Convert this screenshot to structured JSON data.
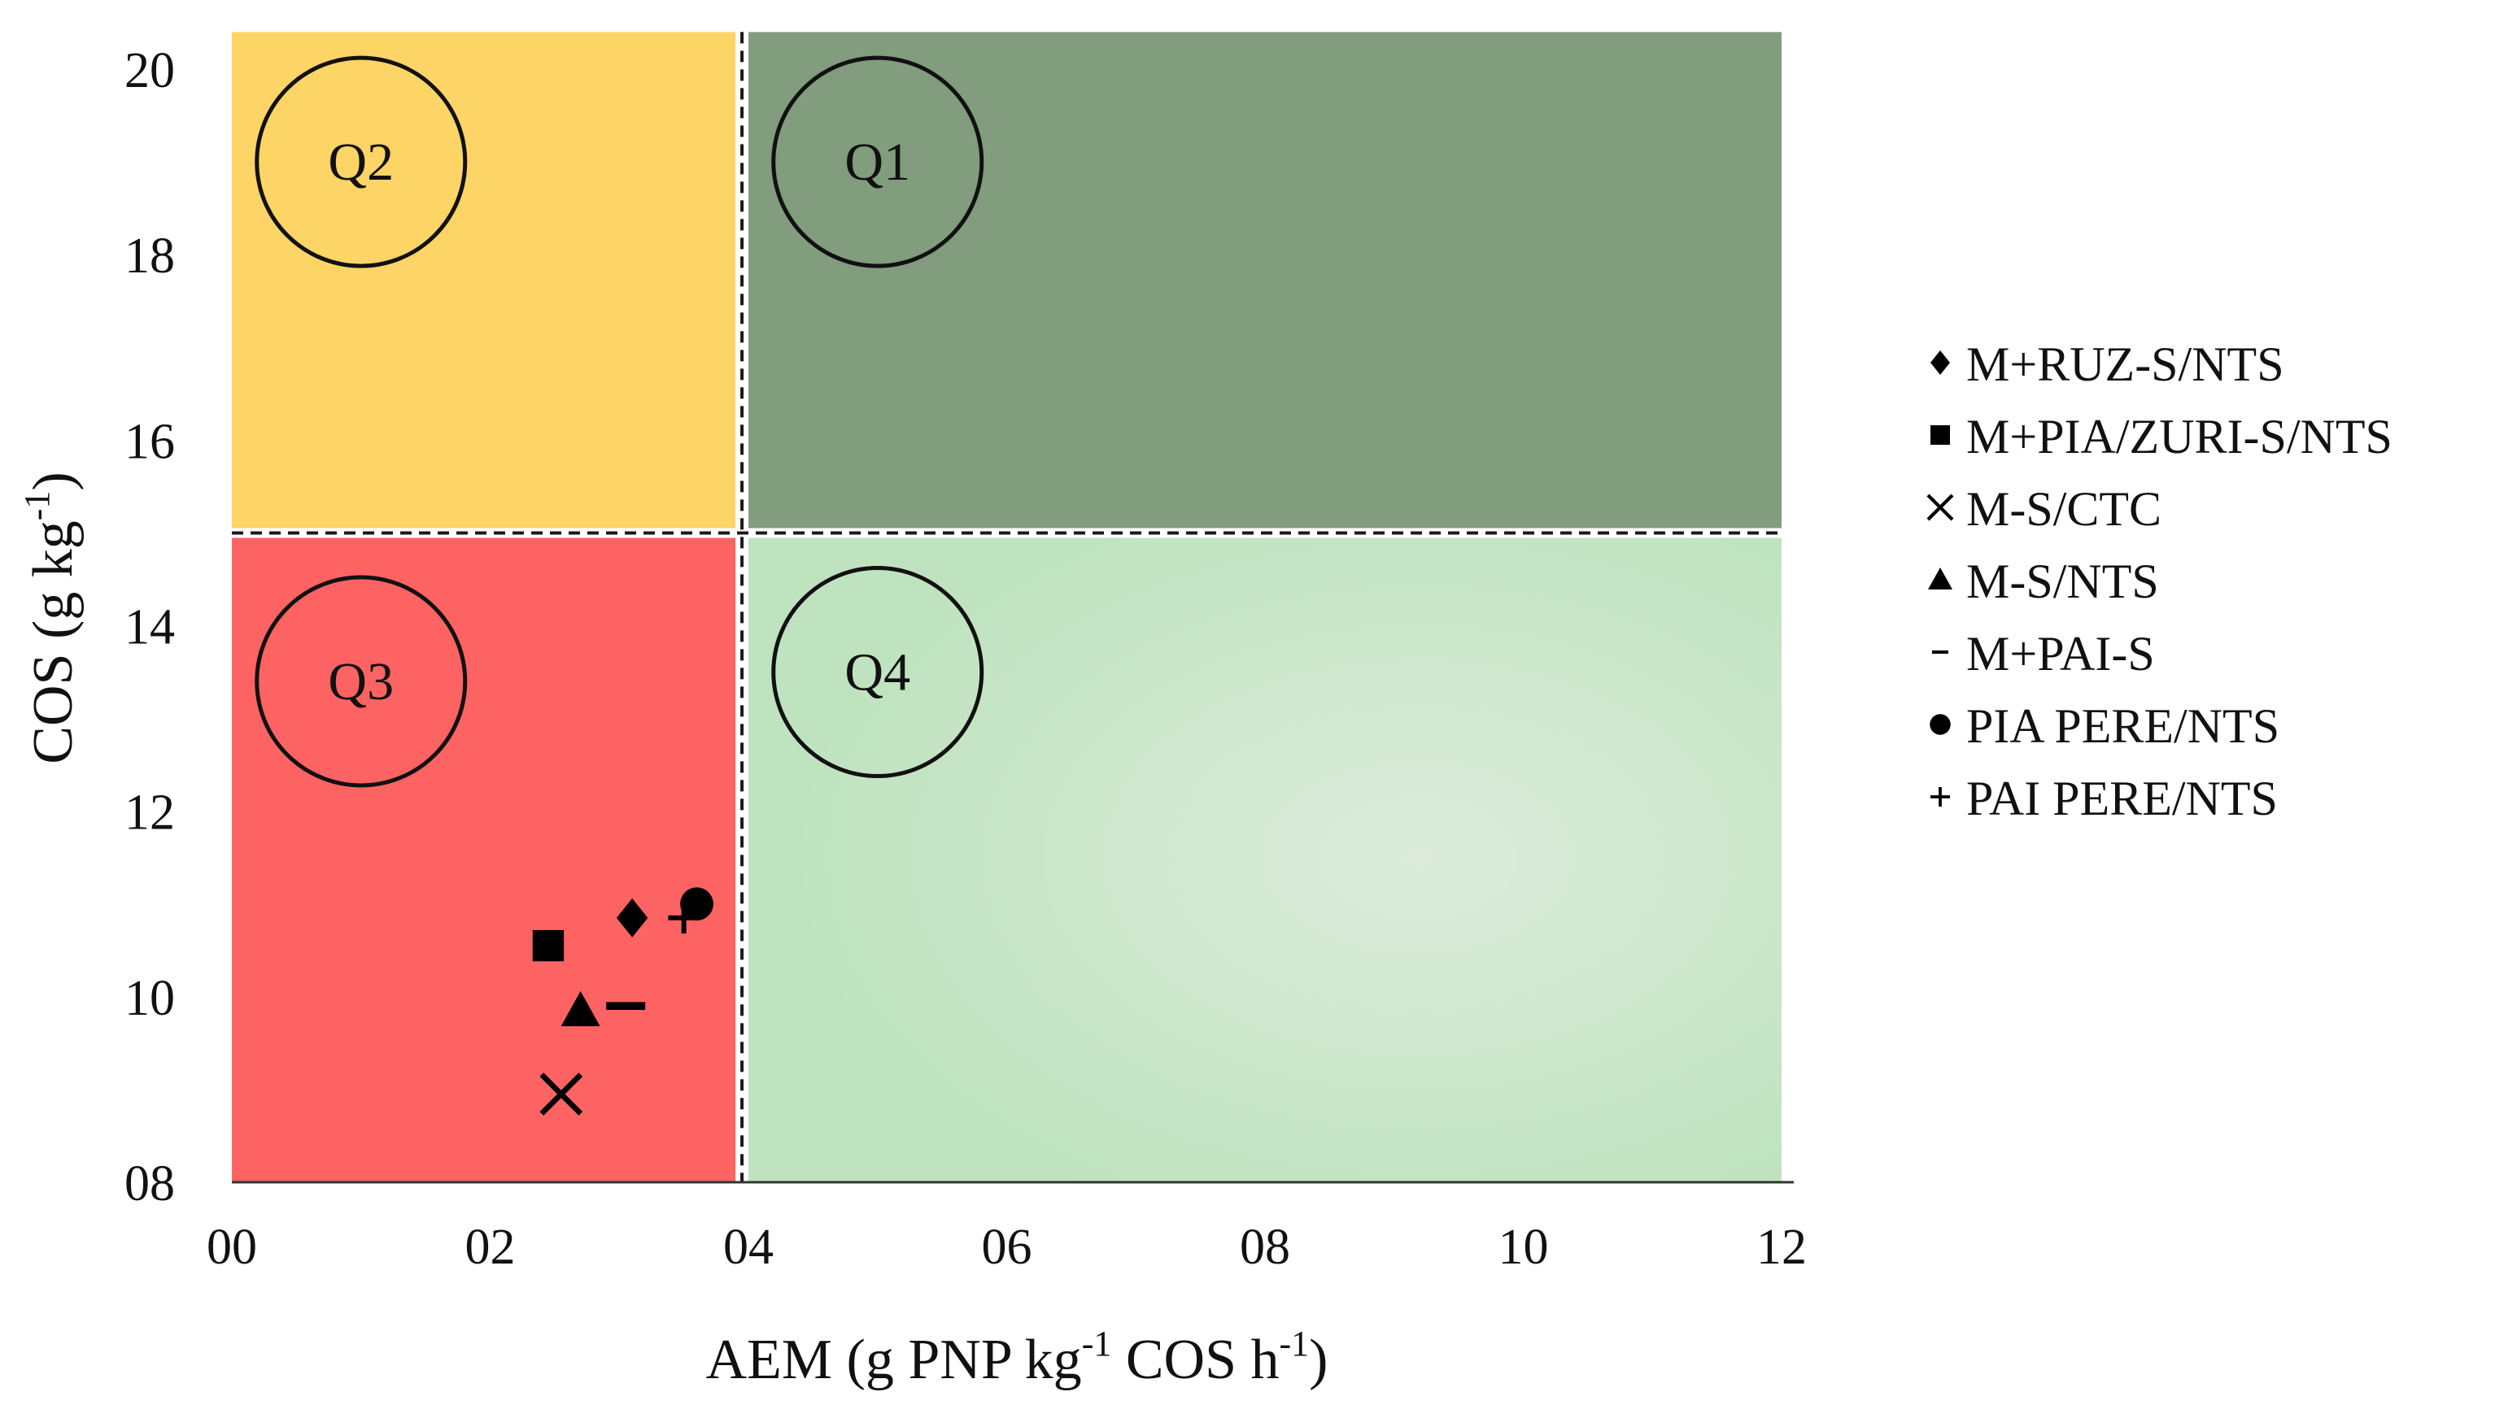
{
  "chart_data": {
    "type": "scatter",
    "title": "",
    "xlabel": {
      "main": "AEM (g PNP kg",
      "sup1": "-1",
      "mid": " COS h",
      "sup2": "-1",
      "end": ")"
    },
    "ylabel": {
      "main": "COS (g kg",
      "sup": "-1",
      "end": ")"
    },
    "xlim": [
      0,
      12
    ],
    "ylim": [
      8,
      20.5
    ],
    "x_ticks": [
      {
        "value": 0,
        "label": "00"
      },
      {
        "value": 2,
        "label": "02"
      },
      {
        "value": 4,
        "label": "04"
      },
      {
        "value": 6,
        "label": "06"
      },
      {
        "value": 8,
        "label": "08"
      },
      {
        "value": 10,
        "label": "10"
      },
      {
        "value": 12,
        "label": "12"
      }
    ],
    "y_ticks": [
      {
        "value": 8,
        "label": "08"
      },
      {
        "value": 10,
        "label": "10"
      },
      {
        "value": 12,
        "label": "12"
      },
      {
        "value": 14,
        "label": "14"
      },
      {
        "value": 16,
        "label": "16"
      },
      {
        "value": 18,
        "label": "18"
      },
      {
        "value": 20,
        "label": "20"
      }
    ],
    "thresholds": {
      "x": 3.95,
      "y": 15
    },
    "quadrants": [
      {
        "id": "q1",
        "label": "Q1",
        "color": "#829C7E",
        "x_range": [
          3.95,
          12
        ],
        "y_range": [
          15,
          20.4
        ],
        "label_at": [
          5,
          19
        ]
      },
      {
        "id": "q2",
        "label": "Q2",
        "color": "#FDD466",
        "x_range": [
          0,
          3.95
        ],
        "y_range": [
          15,
          20.4
        ],
        "label_at": [
          1,
          19
        ]
      },
      {
        "id": "q3",
        "label": "Q3",
        "color": "#FE6363",
        "x_range": [
          0,
          3.95
        ],
        "y_range": [
          8,
          15
        ],
        "label_at": [
          1,
          13.4
        ]
      },
      {
        "id": "q4",
        "label": "Q4",
        "color": "#C2E4C2",
        "x_range": [
          3.95,
          12
        ],
        "y_range": [
          8,
          15
        ],
        "label_at": [
          5,
          13.5
        ]
      }
    ],
    "series": [
      {
        "name": "M+RUZ-S/NTS",
        "marker": "diamond",
        "x": 3.1,
        "y": 10.85
      },
      {
        "name": "M+PIA/ZURI-S/NTS",
        "marker": "square",
        "x": 2.45,
        "y": 10.55
      },
      {
        "name": "M-S/CTC",
        "marker": "x",
        "x": 2.55,
        "y": 8.95
      },
      {
        "name": "M-S/NTS",
        "marker": "triangle",
        "x": 2.7,
        "y": 9.85
      },
      {
        "name": "M+PAI-S",
        "marker": "dash",
        "x": 3.05,
        "y": 9.9
      },
      {
        "name": "PIA PERE/NTS",
        "marker": "circle",
        "x": 3.6,
        "y": 11.0
      },
      {
        "name": "PAI PERE/NTS",
        "marker": "plus",
        "x": 3.5,
        "y": 10.85
      }
    ],
    "legend": {
      "position": "right"
    },
    "marker_color": "#000000"
  }
}
